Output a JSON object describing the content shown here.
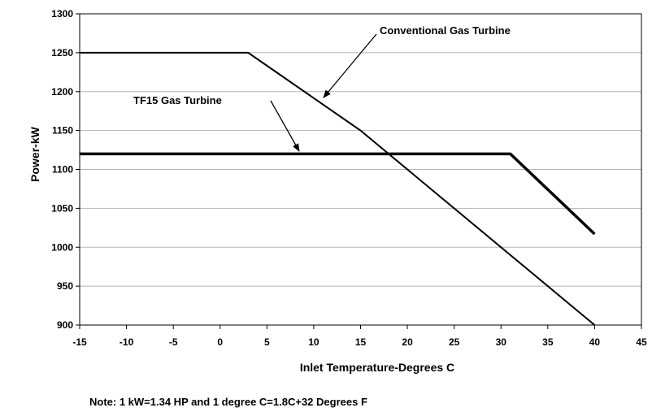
{
  "chart_data": {
    "type": "line",
    "xlabel": "Inlet Temperature-Degrees C",
    "ylabel": "Power-kW",
    "xlim": [
      -15,
      45
    ],
    "ylim": [
      900,
      1300
    ],
    "x_ticks": [
      -15,
      -10,
      -5,
      0,
      5,
      10,
      15,
      20,
      25,
      30,
      35,
      40,
      45
    ],
    "y_ticks": [
      900,
      950,
      1000,
      1050,
      1100,
      1150,
      1200,
      1250,
      1300
    ],
    "grid": "horizontal",
    "series": [
      {
        "name": "Conventional Gas Turbine",
        "x": [
          -15,
          3,
          15,
          40
        ],
        "y": [
          1250,
          1250,
          1150,
          900
        ]
      },
      {
        "name": "TF15 Gas Turbine",
        "x": [
          -15,
          31,
          40
        ],
        "y": [
          1120,
          1120,
          1017
        ]
      }
    ]
  },
  "note": "Note: 1 kW=1.34 HP and 1 degree C=1.8C+32 Degrees F"
}
